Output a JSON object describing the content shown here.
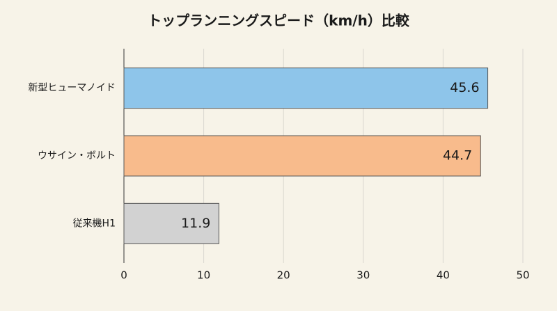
{
  "chart_data": {
    "type": "barh",
    "title": "トップランニングスピード（km/h）比較",
    "categories": [
      "新型ヒューマノイド",
      "ウサイン・ボルト",
      "従来機H1"
    ],
    "values": [
      45.6,
      44.7,
      11.9
    ],
    "colors": [
      "#8ec5ea",
      "#f8bb8c",
      "#d2d2d2"
    ],
    "xlim": [
      0,
      50
    ],
    "xticks": [
      0,
      10,
      20,
      30,
      40,
      50
    ],
    "grid": true
  }
}
